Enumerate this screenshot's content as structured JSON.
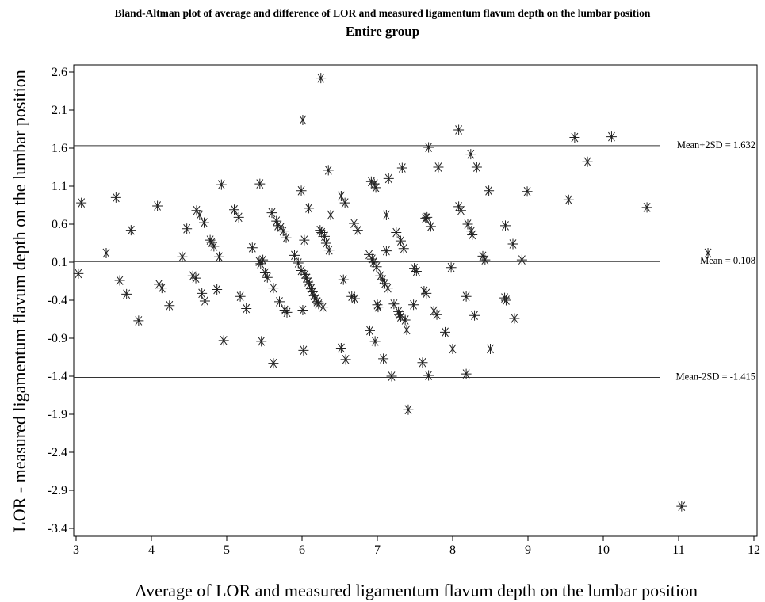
{
  "chart_data": {
    "type": "scatter",
    "title": "Bland-Altman plot of average and difference of LOR and measured ligamentum flavum depth on the lumbar position",
    "subtitle": "Entire group",
    "xlabel": "Average of LOR and measured ligamentum flavum depth on the lumbar position",
    "ylabel": "LOR - measured ligamentum flavum depth on the lumbar position",
    "xlim": [
      3,
      12
    ],
    "ylim": [
      -3.4,
      2.6
    ],
    "xticks": [
      3,
      4,
      5,
      6,
      7,
      8,
      9,
      10,
      11,
      12
    ],
    "yticks": [
      2.6,
      2.1,
      1.6,
      1.1,
      0.6,
      0.1,
      -0.4,
      -0.9,
      -1.4,
      -1.9,
      -2.4,
      -2.9,
      -3.4
    ],
    "grid": false,
    "legend": "none",
    "marker": "asterisk",
    "reference_lines": [
      {
        "label": "Mean+2SD = 1.632",
        "y": 1.632
      },
      {
        "label": "Mean = 0.108",
        "y": 0.108
      },
      {
        "label": "Mean-2SD = -1.415",
        "y": -1.415
      }
    ],
    "points": [
      [
        3.03,
        -0.05
      ],
      [
        3.07,
        0.88
      ],
      [
        3.4,
        0.22
      ],
      [
        3.53,
        0.95
      ],
      [
        3.58,
        -0.14
      ],
      [
        3.67,
        -0.32
      ],
      [
        3.73,
        0.52
      ],
      [
        3.83,
        -0.67
      ],
      [
        4.08,
        0.84
      ],
      [
        4.1,
        -0.19
      ],
      [
        4.14,
        -0.24
      ],
      [
        4.24,
        -0.47
      ],
      [
        4.41,
        0.17
      ],
      [
        4.47,
        0.54
      ],
      [
        4.55,
        -0.08
      ],
      [
        4.59,
        -0.11
      ],
      [
        4.6,
        0.78
      ],
      [
        4.64,
        0.72
      ],
      [
        4.67,
        -0.31
      ],
      [
        4.7,
        0.62
      ],
      [
        4.71,
        -0.41
      ],
      [
        4.78,
        0.39
      ],
      [
        4.8,
        0.36
      ],
      [
        4.83,
        0.31
      ],
      [
        4.87,
        -0.26
      ],
      [
        4.9,
        0.17
      ],
      [
        4.93,
        1.12
      ],
      [
        4.96,
        -0.93
      ],
      [
        5.1,
        0.79
      ],
      [
        5.16,
        0.69
      ],
      [
        5.18,
        -0.35
      ],
      [
        5.26,
        -0.51
      ],
      [
        5.34,
        0.29
      ],
      [
        5.43,
        0.11
      ],
      [
        5.44,
        1.13
      ],
      [
        5.45,
        0.08
      ],
      [
        5.46,
        -0.94
      ],
      [
        5.48,
        0.13
      ],
      [
        5.51,
        -0.04
      ],
      [
        5.54,
        -0.1
      ],
      [
        5.6,
        0.75
      ],
      [
        5.62,
        -0.24
      ],
      [
        5.62,
        -1.23
      ],
      [
        5.66,
        0.64
      ],
      [
        5.68,
        0.58
      ],
      [
        5.7,
        -0.42
      ],
      [
        5.72,
        0.56
      ],
      [
        5.75,
        0.51
      ],
      [
        5.77,
        -0.53
      ],
      [
        5.79,
        0.42
      ],
      [
        5.8,
        -0.56
      ],
      [
        5.9,
        0.19
      ],
      [
        5.95,
        0.09
      ],
      [
        5.99,
        1.04
      ],
      [
        5.99,
        -0.01
      ],
      [
        6.01,
        1.97
      ],
      [
        6.01,
        -0.53
      ],
      [
        6.02,
        -1.06
      ],
      [
        6.03,
        0.39
      ],
      [
        6.04,
        -0.06
      ],
      [
        6.06,
        -0.11
      ],
      [
        6.08,
        -0.16
      ],
      [
        6.09,
        0.81
      ],
      [
        6.1,
        -0.19
      ],
      [
        6.12,
        -0.25
      ],
      [
        6.14,
        -0.29
      ],
      [
        6.16,
        -0.34
      ],
      [
        6.18,
        -0.38
      ],
      [
        6.2,
        -0.42
      ],
      [
        6.22,
        -0.45
      ],
      [
        6.24,
        0.52
      ],
      [
        6.25,
        2.52
      ],
      [
        6.26,
        0.49
      ],
      [
        6.28,
        -0.49
      ],
      [
        6.3,
        0.44
      ],
      [
        6.32,
        0.35
      ],
      [
        6.35,
        1.31
      ],
      [
        6.36,
        0.26
      ],
      [
        6.38,
        0.72
      ],
      [
        6.52,
        0.97
      ],
      [
        6.52,
        -1.03
      ],
      [
        6.55,
        -0.13
      ],
      [
        6.57,
        0.88
      ],
      [
        6.58,
        -1.18
      ],
      [
        6.66,
        -0.35
      ],
      [
        6.69,
        0.61
      ],
      [
        6.7,
        -0.38
      ],
      [
        6.74,
        0.52
      ],
      [
        6.89,
        0.2
      ],
      [
        6.9,
        -0.8
      ],
      [
        6.92,
        1.16
      ],
      [
        6.93,
        0.14
      ],
      [
        6.95,
        0.1
      ],
      [
        6.96,
        1.13
      ],
      [
        6.97,
        -0.94
      ],
      [
        6.98,
        1.08
      ],
      [
        6.99,
        0.04
      ],
      [
        7.0,
        -0.46
      ],
      [
        7.01,
        -0.49
      ],
      [
        7.04,
        -0.08
      ],
      [
        7.07,
        -0.13
      ],
      [
        7.08,
        -1.17
      ],
      [
        7.1,
        -0.18
      ],
      [
        7.12,
        0.25
      ],
      [
        7.12,
        0.72
      ],
      [
        7.14,
        -0.24
      ],
      [
        7.15,
        1.2
      ],
      [
        7.19,
        -1.4
      ],
      [
        7.22,
        -0.45
      ],
      [
        7.25,
        0.49
      ],
      [
        7.28,
        -0.55
      ],
      [
        7.29,
        -0.59
      ],
      [
        7.31,
        0.38
      ],
      [
        7.31,
        -0.62
      ],
      [
        7.33,
        1.34
      ],
      [
        7.35,
        0.28
      ],
      [
        7.37,
        -0.66
      ],
      [
        7.39,
        -0.79
      ],
      [
        7.41,
        -1.84
      ],
      [
        7.48,
        -0.46
      ],
      [
        7.49,
        0.02
      ],
      [
        7.52,
        -0.02
      ],
      [
        7.6,
        -1.22
      ],
      [
        7.62,
        -0.28
      ],
      [
        7.64,
        0.68
      ],
      [
        7.65,
        -0.31
      ],
      [
        7.66,
        0.69
      ],
      [
        7.68,
        1.61
      ],
      [
        7.68,
        -1.39
      ],
      [
        7.71,
        0.57
      ],
      [
        7.75,
        -0.54
      ],
      [
        7.79,
        -0.59
      ],
      [
        7.81,
        1.35
      ],
      [
        7.9,
        -0.82
      ],
      [
        7.98,
        0.03
      ],
      [
        8.0,
        -1.04
      ],
      [
        8.08,
        1.84
      ],
      [
        8.08,
        0.83
      ],
      [
        8.11,
        0.78
      ],
      [
        8.18,
        -0.35
      ],
      [
        8.18,
        -1.37
      ],
      [
        8.2,
        0.6
      ],
      [
        8.24,
        1.52
      ],
      [
        8.25,
        0.51
      ],
      [
        8.26,
        0.46
      ],
      [
        8.29,
        -0.6
      ],
      [
        8.32,
        1.35
      ],
      [
        8.4,
        0.18
      ],
      [
        8.43,
        0.13
      ],
      [
        8.48,
        1.04
      ],
      [
        8.5,
        -1.04
      ],
      [
        8.69,
        -0.37
      ],
      [
        8.7,
        0.58
      ],
      [
        8.71,
        -0.4
      ],
      [
        8.8,
        0.34
      ],
      [
        8.82,
        -0.64
      ],
      [
        8.92,
        0.13
      ],
      [
        8.99,
        1.03
      ],
      [
        9.54,
        0.92
      ],
      [
        9.62,
        1.74
      ],
      [
        9.79,
        1.42
      ],
      [
        10.11,
        1.75
      ],
      [
        10.58,
        0.82
      ],
      [
        11.04,
        -3.11
      ],
      [
        11.39,
        0.22
      ]
    ]
  }
}
